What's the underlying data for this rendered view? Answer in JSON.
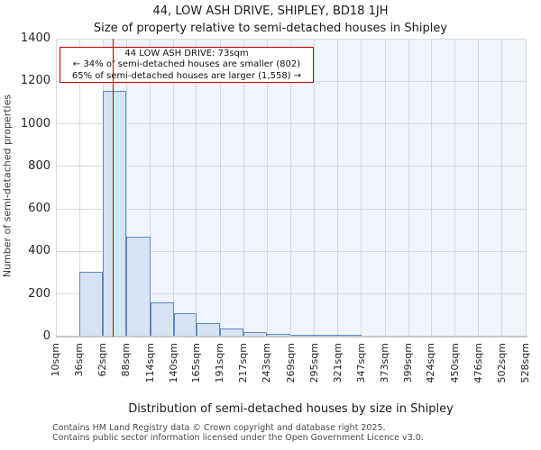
{
  "chart_data": {
    "type": "bar",
    "title": "44, LOW ASH DRIVE, SHIPLEY, BD18 1JH",
    "subtitle": "Size of property relative to semi-detached houses in Shipley",
    "xlabel": "Distribution of semi-detached houses by size in Shipley",
    "ylabel": "Number of semi-detached properties",
    "ylim": [
      0,
      1400
    ],
    "y_ticks": [
      0,
      200,
      400,
      600,
      800,
      1000,
      1200,
      1400
    ],
    "x_tick_labels": [
      "10sqm",
      "36sqm",
      "62sqm",
      "88sqm",
      "114sqm",
      "140sqm",
      "165sqm",
      "191sqm",
      "217sqm",
      "243sqm",
      "269sqm",
      "295sqm",
      "321sqm",
      "347sqm",
      "373sqm",
      "399sqm",
      "424sqm",
      "450sqm",
      "476sqm",
      "502sqm",
      "528sqm"
    ],
    "bin_edges_sqm": [
      10,
      36,
      62,
      88,
      114,
      140,
      165,
      191,
      217,
      243,
      269,
      295,
      321,
      347,
      373,
      399,
      424,
      450,
      476,
      502,
      528
    ],
    "values": [
      0,
      305,
      1155,
      470,
      160,
      110,
      62,
      38,
      22,
      12,
      7,
      3,
      3,
      0,
      0,
      0,
      0,
      0,
      0,
      0
    ],
    "grid": true,
    "legend": "none",
    "bar_fill": "#d7e3f4",
    "bar_border": "#5a8ac6",
    "marker": {
      "value_sqm": 73,
      "color": "#c00000"
    },
    "highlight_band": {
      "from_sqm": 62,
      "to_sqm": 528,
      "color": "#f0f4fb"
    },
    "annotation": {
      "border_color": "#c00000",
      "line1": "44 LOW ASH DRIVE: 73sqm",
      "line2": "← 34% of semi-detached houses are smaller (802)",
      "line3": "65% of semi-detached houses are larger (1,558) →"
    }
  },
  "footer": {
    "line1": "Contains HM Land Registry data © Crown copyright and database right 2025.",
    "line2": "Contains public sector information licensed under the Open Government Licence v3.0."
  }
}
